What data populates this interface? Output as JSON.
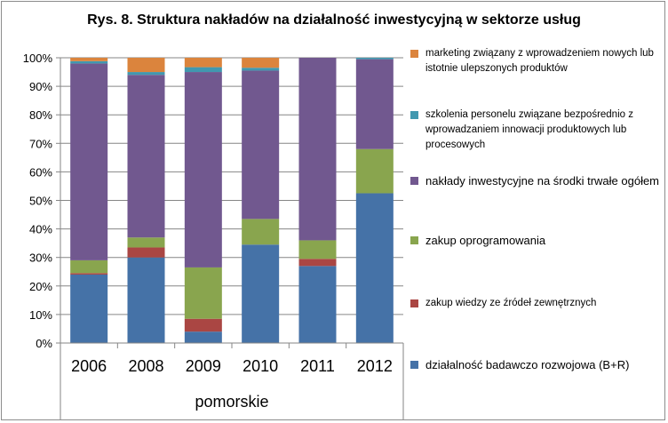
{
  "chart_data": {
    "type": "stacked-bar-100",
    "title": "Rys. 8.  Struktura nakładów na działalność inwestycyjną w sektorze usług",
    "categories": [
      "2006",
      "2008",
      "2009",
      "2010",
      "2011",
      "2012"
    ],
    "group_label": "pomorskie",
    "y_ticks": [
      "0%",
      "10%",
      "20%",
      "30%",
      "40%",
      "50%",
      "60%",
      "70%",
      "80%",
      "90%",
      "100%"
    ],
    "ylim": [
      0,
      100
    ],
    "legend_placement": "right",
    "series": [
      {
        "name": "działalność badawczo rozwojowa (B+R)",
        "color": "#4572A7",
        "values": [
          24,
          30,
          4,
          34.5,
          27,
          52.5
        ]
      },
      {
        "name": "zakup wiedzy ze źródeł zewnętrznych",
        "color": "#AA4643",
        "values": [
          0.5,
          3.5,
          4.5,
          0,
          2.5,
          0
        ]
      },
      {
        "name": "zakup oprogramowania",
        "color": "#89A54E",
        "values": [
          4.5,
          3.5,
          18,
          9,
          6.5,
          15.5
        ]
      },
      {
        "name": "nakłady inwestycyjne na środki trwałe ogółem",
        "color": "#71588F",
        "values": [
          69,
          57,
          68.5,
          52,
          64,
          31.5
        ]
      },
      {
        "name": "szkolenia personelu związane bezpośrednio z wprowadzaniem innowacji produktowych lub procesowych",
        "color": "#4198AF",
        "values": [
          0.8,
          1,
          1.7,
          1,
          0,
          0.5
        ]
      },
      {
        "name": "marketing związany z wprowadzeniem nowych lub istotnie ulepszonych produktów",
        "color": "#DB843D",
        "values": [
          1.2,
          5,
          3.3,
          3.5,
          0,
          0
        ]
      }
    ]
  }
}
